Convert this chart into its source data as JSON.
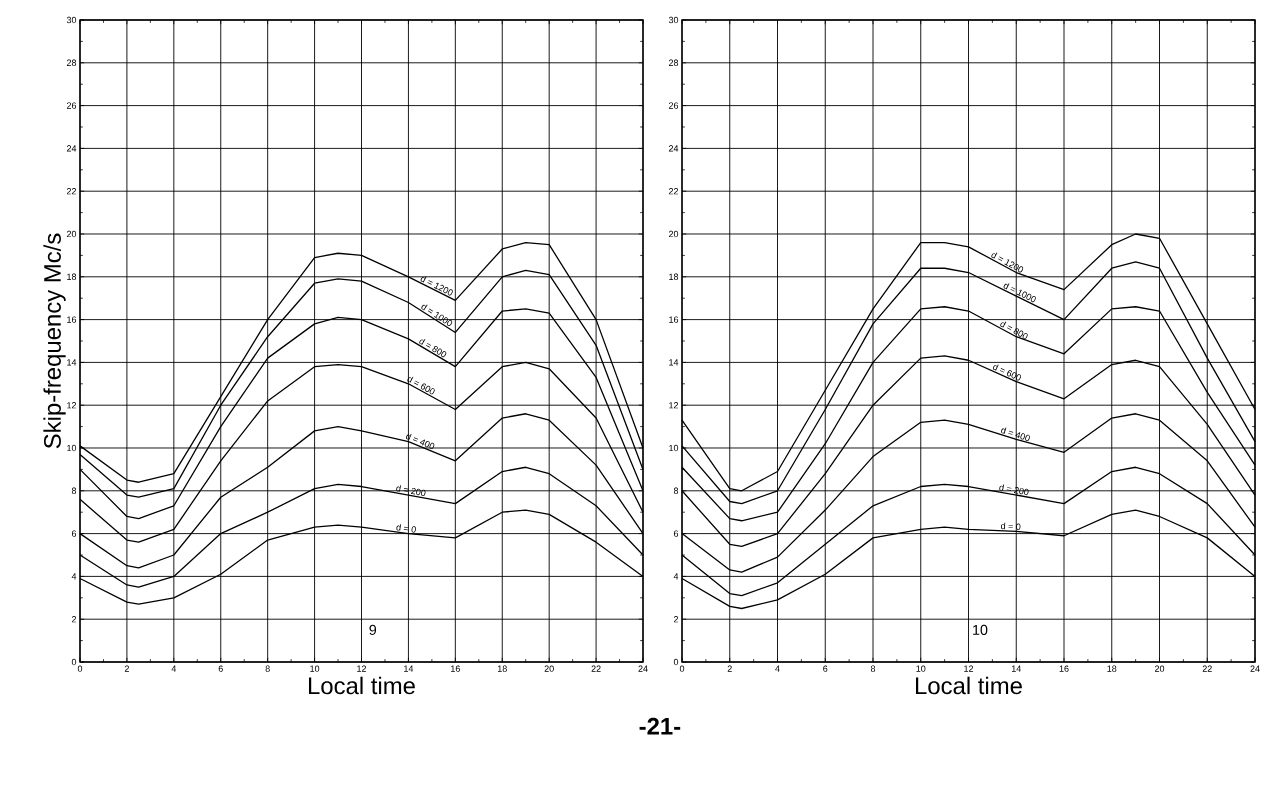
{
  "chart_data": [
    {
      "type": "line",
      "xlabel": "Local time",
      "ylabel": "Skip-frequency Mc/s",
      "x": [
        0,
        2,
        2.5,
        4,
        6,
        8,
        10,
        11,
        12,
        14,
        16,
        18,
        19,
        20,
        22,
        24
      ],
      "series": [
        {
          "name": "d = 1200",
          "color": "#000000",
          "values": [
            10.1,
            8.5,
            8.4,
            8.8,
            12.4,
            16.0,
            18.9,
            19.1,
            19.0,
            18.0,
            16.9,
            19.3,
            19.6,
            19.5,
            16.0,
            10.0
          ]
        },
        {
          "name": "d = 1000",
          "color": "#000000",
          "values": [
            9.7,
            7.8,
            7.7,
            8.1,
            12.0,
            15.2,
            17.7,
            17.9,
            17.8,
            16.8,
            15.4,
            18.0,
            18.3,
            18.1,
            14.8,
            9.0
          ]
        },
        {
          "name": "d = 800",
          "color": "#000000",
          "values": [
            9.0,
            6.8,
            6.7,
            7.3,
            11.0,
            14.2,
            15.8,
            16.1,
            16.0,
            15.1,
            13.8,
            16.4,
            16.5,
            16.3,
            13.3,
            8.0
          ]
        },
        {
          "name": "d = 600",
          "color": "#000000",
          "values": [
            7.6,
            5.7,
            5.6,
            6.2,
            9.4,
            12.2,
            13.8,
            13.9,
            13.8,
            13.0,
            11.8,
            13.8,
            14.0,
            13.7,
            11.4,
            7.0
          ]
        },
        {
          "name": "d = 400",
          "color": "#000000",
          "values": [
            6.0,
            4.5,
            4.4,
            5.0,
            7.7,
            9.1,
            10.8,
            11.0,
            10.8,
            10.3,
            9.4,
            11.4,
            11.6,
            11.3,
            9.2,
            6.0
          ]
        },
        {
          "name": "d = 200",
          "color": "#000000",
          "values": [
            5.0,
            3.6,
            3.5,
            4.0,
            6.0,
            7.0,
            8.1,
            8.3,
            8.2,
            7.8,
            7.4,
            8.9,
            9.1,
            8.8,
            7.3,
            5.0
          ]
        },
        {
          "name": "d = 0",
          "color": "#000000",
          "values": [
            3.9,
            2.8,
            2.7,
            3.0,
            4.1,
            5.7,
            6.3,
            6.4,
            6.3,
            6.0,
            5.8,
            7.0,
            7.1,
            6.9,
            5.6,
            4.0
          ]
        }
      ],
      "xlim": [
        0,
        24
      ],
      "ylim": [
        0,
        30
      ],
      "xticks": [
        0,
        2,
        4,
        6,
        8,
        10,
        12,
        14,
        16,
        18,
        20,
        22,
        24
      ],
      "yticks": [
        0,
        2,
        4,
        6,
        8,
        10,
        12,
        14,
        16,
        18,
        20,
        22,
        24,
        26,
        28,
        30
      ],
      "grid": true,
      "annotations": [
        "9",
        "-21-"
      ]
    },
    {
      "type": "line",
      "xlabel": "Local time",
      "x": [
        0,
        2,
        2.5,
        4,
        6,
        8,
        10,
        11,
        12,
        14,
        16,
        18,
        19,
        20,
        22,
        24
      ],
      "series": [
        {
          "name": "d = 1200",
          "color": "#000000",
          "values": [
            11.3,
            8.1,
            8.0,
            8.9,
            12.7,
            16.5,
            19.6,
            19.6,
            19.4,
            18.2,
            17.4,
            19.5,
            20.0,
            19.8,
            15.8,
            11.8
          ]
        },
        {
          "name": "d = 1000",
          "color": "#000000",
          "values": [
            10.1,
            7.5,
            7.4,
            8.0,
            11.8,
            15.8,
            18.4,
            18.4,
            18.2,
            17.1,
            16.0,
            18.4,
            18.7,
            18.4,
            14.2,
            10.3
          ]
        },
        {
          "name": "d = 800",
          "color": "#000000",
          "values": [
            9.1,
            6.7,
            6.6,
            7.0,
            10.2,
            14.0,
            16.5,
            16.6,
            16.4,
            15.2,
            14.4,
            16.5,
            16.6,
            16.4,
            12.6,
            9.2
          ]
        },
        {
          "name": "d = 600",
          "color": "#000000",
          "values": [
            8.0,
            5.5,
            5.4,
            6.0,
            8.8,
            12.0,
            14.2,
            14.3,
            14.1,
            13.1,
            12.3,
            13.9,
            14.1,
            13.8,
            11.1,
            7.8
          ]
        },
        {
          "name": "d = 400",
          "color": "#000000",
          "values": [
            6.0,
            4.3,
            4.2,
            4.9,
            7.1,
            9.6,
            11.2,
            11.3,
            11.1,
            10.4,
            9.8,
            11.4,
            11.6,
            11.3,
            9.4,
            6.3
          ]
        },
        {
          "name": "d = 200",
          "color": "#000000",
          "values": [
            5.0,
            3.2,
            3.1,
            3.7,
            5.5,
            7.3,
            8.2,
            8.3,
            8.2,
            7.8,
            7.4,
            8.9,
            9.1,
            8.8,
            7.4,
            5.0
          ]
        },
        {
          "name": "d = 0",
          "color": "#000000",
          "values": [
            3.9,
            2.6,
            2.5,
            2.9,
            4.1,
            5.8,
            6.2,
            6.3,
            6.2,
            6.1,
            5.9,
            6.9,
            7.1,
            6.8,
            5.8,
            4.0
          ]
        }
      ],
      "xlim": [
        0,
        24
      ],
      "ylim": [
        0,
        30
      ],
      "xticks": [
        0,
        2,
        4,
        6,
        8,
        10,
        12,
        14,
        16,
        18,
        20,
        22,
        24
      ],
      "yticks": [
        0,
        2,
        4,
        6,
        8,
        10,
        12,
        14,
        16,
        18,
        20,
        22,
        24,
        26,
        28,
        30
      ],
      "grid": true,
      "annotations": [
        "10"
      ]
    }
  ]
}
